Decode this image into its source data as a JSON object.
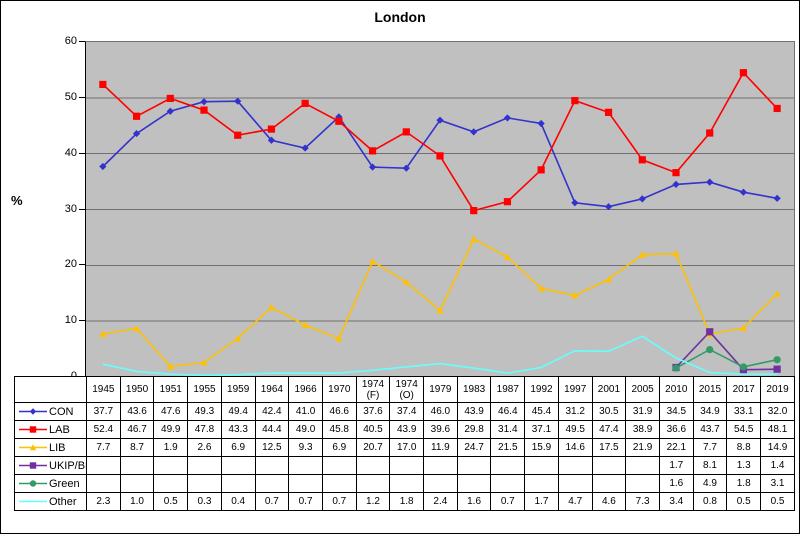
{
  "chart": {
    "title": "London",
    "y_axis_label": "%"
  },
  "chart_data": {
    "type": "line",
    "title": "London",
    "xlabel": "",
    "ylabel": "%",
    "ylim": [
      0,
      60
    ],
    "yticks": [
      0,
      10,
      20,
      30,
      40,
      50,
      60
    ],
    "grid": true,
    "plot_bg_color": "#C0C0C0",
    "gridline_color": "#707070",
    "legend_position": "data-table-left",
    "categories": [
      "1945",
      "1950",
      "1951",
      "1955",
      "1959",
      "1964",
      "1966",
      "1970",
      "1974\n(F)",
      "1974\n(O)",
      "1979",
      "1983",
      "1987",
      "1992",
      "1997",
      "2001",
      "2005",
      "2010",
      "2015",
      "2017",
      "2019"
    ],
    "series": [
      {
        "name": "CON",
        "color": "#3232CD",
        "marker": "diamond",
        "values": [
          37.7,
          43.6,
          47.6,
          49.3,
          49.4,
          42.4,
          41.0,
          46.6,
          37.6,
          37.4,
          46.0,
          43.9,
          46.4,
          45.4,
          31.2,
          30.5,
          31.9,
          34.5,
          34.9,
          33.1,
          32.0
        ]
      },
      {
        "name": "LAB",
        "color": "#FF0000",
        "marker": "square",
        "values": [
          52.4,
          46.7,
          49.9,
          47.8,
          43.3,
          44.4,
          49.0,
          45.8,
          40.5,
          43.9,
          39.6,
          29.8,
          31.4,
          37.1,
          49.5,
          47.4,
          38.9,
          36.6,
          43.7,
          54.5,
          48.1
        ]
      },
      {
        "name": "LIB",
        "color": "#FFC000",
        "marker": "triangle",
        "values": [
          7.7,
          8.7,
          1.9,
          2.6,
          6.9,
          12.5,
          9.3,
          6.9,
          20.7,
          17.0,
          11.9,
          24.7,
          21.5,
          15.9,
          14.6,
          17.5,
          21.9,
          22.1,
          7.7,
          8.8,
          14.9
        ]
      },
      {
        "name": "UKIP/Br",
        "color": "#7030A0",
        "marker": "square",
        "values": [
          null,
          null,
          null,
          null,
          null,
          null,
          null,
          null,
          null,
          null,
          null,
          null,
          null,
          null,
          null,
          null,
          null,
          1.7,
          8.1,
          1.3,
          1.4
        ]
      },
      {
        "name": "Green",
        "color": "#339966",
        "marker": "circle",
        "values": [
          null,
          null,
          null,
          null,
          null,
          null,
          null,
          null,
          null,
          null,
          null,
          null,
          null,
          null,
          null,
          null,
          null,
          1.6,
          4.9,
          1.8,
          3.1
        ]
      },
      {
        "name": "Other",
        "color": "#66FFFF",
        "marker": "none",
        "values": [
          2.3,
          1.0,
          0.5,
          0.3,
          0.4,
          0.7,
          0.7,
          0.7,
          1.2,
          1.8,
          2.4,
          1.6,
          0.7,
          1.7,
          4.7,
          4.6,
          7.3,
          3.4,
          0.8,
          0.5,
          0.5
        ]
      }
    ]
  }
}
